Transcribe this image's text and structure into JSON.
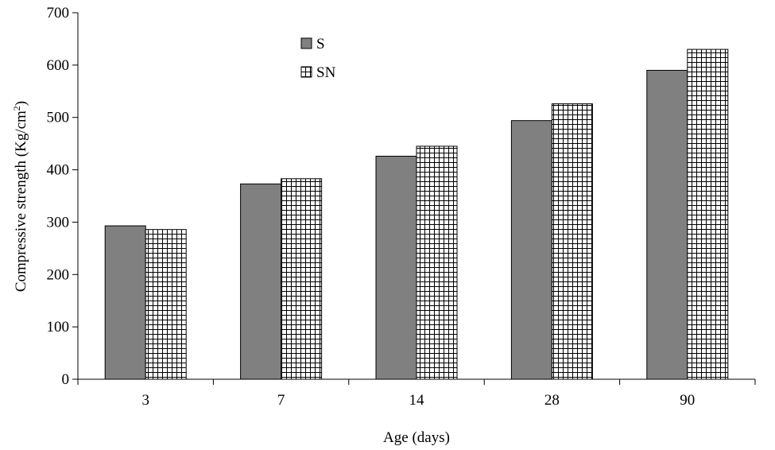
{
  "chart_data": {
    "type": "bar",
    "categories": [
      "3",
      "7",
      "14",
      "28",
      "90"
    ],
    "series": [
      {
        "name": "S",
        "values": [
          293,
          373,
          426,
          494,
          590
        ],
        "color": "#808080",
        "pattern": "solid"
      },
      {
        "name": "SN",
        "values": [
          286,
          383,
          445,
          526,
          630
        ],
        "color": "#ffffff",
        "pattern": "grid-hatch"
      }
    ],
    "title": "",
    "xlabel": "Age (days)",
    "ylabel_main": "Compressive strength (Kg/cm",
    "ylabel_sup": "2",
    "ylabel_close": ")",
    "ylim": [
      0,
      700
    ],
    "yticks": [
      0,
      100,
      200,
      300,
      400,
      500,
      600,
      700
    ],
    "grid": false,
    "legend_position": "top-center"
  }
}
